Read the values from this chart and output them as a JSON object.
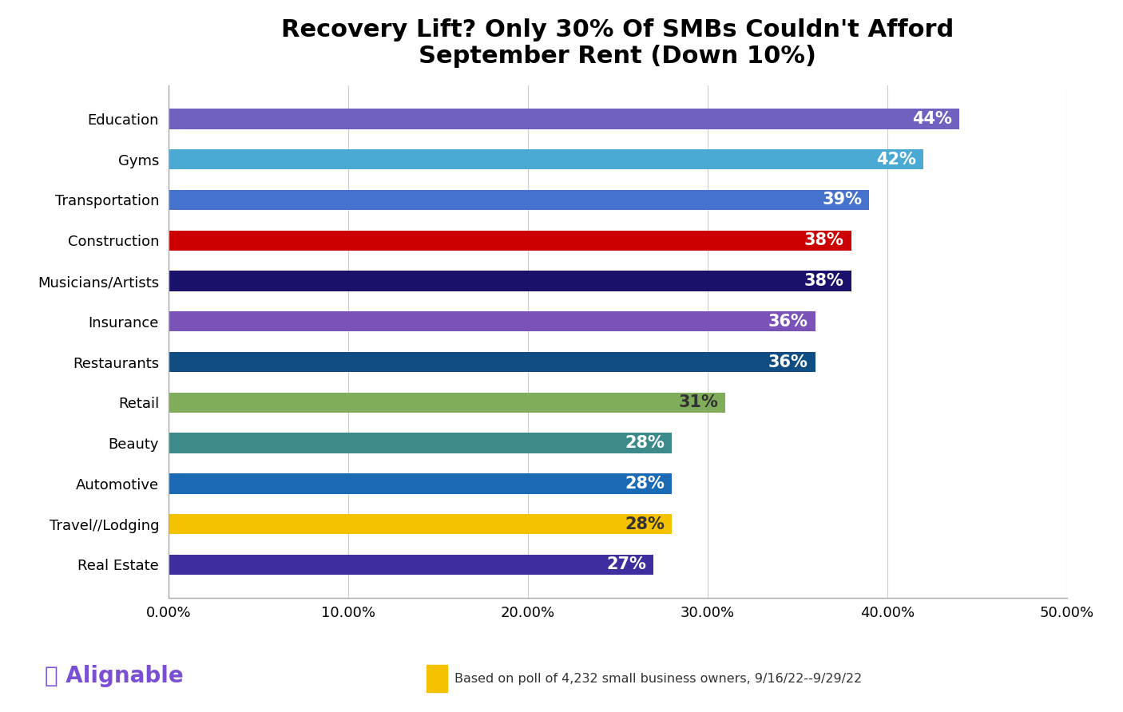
{
  "title": "Recovery Lift? Only 30% Of SMBs Couldn't Afford\nSeptember Rent (Down 10%)",
  "categories": [
    "Real Estate",
    "Travel//Lodging",
    "Automotive",
    "Beauty",
    "Retail",
    "Restaurants",
    "Insurance",
    "Musicians/Artists",
    "Construction",
    "Transportation",
    "Gyms",
    "Education"
  ],
  "values": [
    27,
    28,
    28,
    28,
    31,
    36,
    36,
    38,
    38,
    39,
    42,
    44
  ],
  "colors": [
    "#3d2d9e",
    "#f5c200",
    "#1a6ab5",
    "#3d8a8a",
    "#7fad5a",
    "#0f4d82",
    "#7a52b8",
    "#1a126a",
    "#cc0000",
    "#4472cc",
    "#4aaad4",
    "#7060c0"
  ],
  "bar_label_colors": [
    "white",
    "#333333",
    "white",
    "white",
    "#333333",
    "white",
    "white",
    "white",
    "white",
    "white",
    "white",
    "white"
  ],
  "xlim": [
    0,
    50
  ],
  "xticks": [
    0,
    10,
    20,
    30,
    40,
    50
  ],
  "background_color": "#ffffff",
  "note_text": "Based on poll of 4,232 small business owners, 9/16/22--9/29/22",
  "title_fontsize": 22,
  "label_fontsize": 13,
  "tick_fontsize": 13,
  "bar_label_fontsize": 15,
  "bar_height": 0.5
}
